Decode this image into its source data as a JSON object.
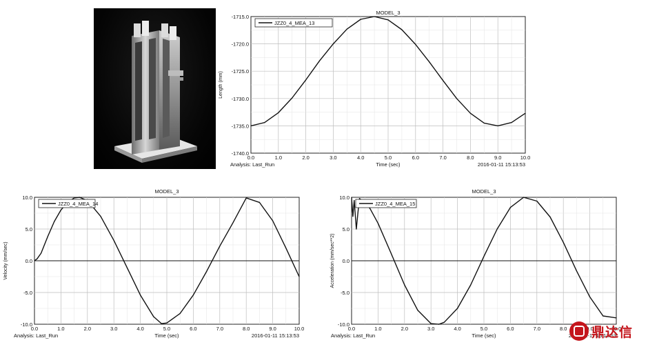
{
  "chart_data": [
    {
      "type": "line",
      "title": "MODEL_3",
      "xlabel": "Time (sec)",
      "ylabel": "Length (mm)",
      "footer_left": "Analysis:  Last_Run",
      "footer_right": "2016-01-11 15:13:53",
      "legend_position": "top-left",
      "grid": true,
      "xlim": [
        0.0,
        10.0
      ],
      "ylim": [
        -1740.0,
        -1715.0
      ],
      "xticks": [
        "0.0",
        "1.0",
        "2.0",
        "3.0",
        "4.0",
        "5.0",
        "6.0",
        "7.0",
        "8.0",
        "9.0",
        "10.0"
      ],
      "yticks": [
        "-1715.0",
        "-1720.0",
        "-1725.0",
        "-1730.0",
        "-1735.0",
        "-1740.0"
      ],
      "series": [
        {
          "name": "JZZ0_4_MEA_13",
          "x": [
            0.0,
            0.5,
            1.0,
            1.5,
            2.0,
            2.5,
            3.0,
            3.5,
            4.0,
            4.5,
            5.0,
            5.5,
            6.0,
            6.5,
            7.0,
            7.5,
            8.0,
            8.5,
            9.0,
            9.5,
            10.0
          ],
          "y": [
            -1735.0,
            -1734.4,
            -1732.6,
            -1729.9,
            -1726.6,
            -1723.1,
            -1720.0,
            -1717.3,
            -1715.5,
            -1715.0,
            -1715.6,
            -1717.4,
            -1720.1,
            -1723.3,
            -1726.7,
            -1730.0,
            -1732.7,
            -1734.5,
            -1735.0,
            -1734.4,
            -1732.7
          ]
        }
      ]
    },
    {
      "type": "line",
      "title": "MODEL_3",
      "xlabel": "Time (sec)",
      "ylabel": "Velocity (mm/sec)",
      "footer_left": "Analysis:  Last_Run",
      "footer_right": "2016-01-11 15:13:53",
      "legend_position": "top-left",
      "grid": true,
      "xlim": [
        0.0,
        10.0
      ],
      "ylim": [
        -10.0,
        10.0
      ],
      "xticks": [
        "0.0",
        "1.0",
        "2.0",
        "3.0",
        "4.0",
        "5.0",
        "6.0",
        "7.0",
        "8.0",
        "9.0",
        "10.0"
      ],
      "yticks": [
        "10.0",
        "5.0",
        "0.0",
        "-5.0",
        "-10.0"
      ],
      "series": [
        {
          "name": "JZZ0_4_MEA_14",
          "x": [
            0.0,
            0.1,
            0.25,
            0.5,
            0.75,
            1.0,
            1.25,
            1.5,
            1.7,
            2.0,
            2.5,
            3.0,
            3.5,
            4.0,
            4.5,
            4.8,
            5.0,
            5.5,
            6.0,
            6.5,
            7.0,
            7.5,
            8.0,
            8.5,
            9.0,
            9.5,
            10.0
          ],
          "y": [
            0.0,
            0.3,
            1.2,
            3.8,
            6.2,
            8.0,
            9.2,
            9.9,
            10.0,
            9.5,
            7.0,
            3.2,
            -1.1,
            -5.4,
            -8.8,
            -9.9,
            -9.8,
            -8.3,
            -5.4,
            -1.7,
            2.3,
            6.0,
            9.9,
            9.2,
            6.3,
            2.0,
            -2.5
          ]
        }
      ]
    },
    {
      "type": "line",
      "title": "MODEL_3",
      "xlabel": "Time (sec)",
      "ylabel": "Acceleration (mm/sec**2)",
      "footer_left": "Analysis:  Last_Run",
      "footer_right": "2016-01-11 15:13:53",
      "legend_position": "top-left",
      "grid": true,
      "xlim": [
        0.0,
        10.0
      ],
      "ylim": [
        -10.0,
        10.0
      ],
      "xticks": [
        "0.0",
        "1.0",
        "2.0",
        "3.0",
        "4.0",
        "5.0",
        "6.0",
        "7.0",
        "8.0",
        "9.0",
        "10.0"
      ],
      "yticks": [
        "10.0",
        "5.0",
        "0.0",
        "-5.0",
        "-10.0"
      ],
      "series": [
        {
          "name": "JZZ0_4_MEA_15",
          "x": [
            0.0,
            0.05,
            0.1,
            0.18,
            0.25,
            0.3,
            0.4,
            0.5,
            0.7,
            1.0,
            1.5,
            2.0,
            2.5,
            3.0,
            3.3,
            3.5,
            4.0,
            4.5,
            5.0,
            5.5,
            6.0,
            6.5,
            7.0,
            7.5,
            8.0,
            8.5,
            9.0,
            9.5,
            10.0
          ],
          "y": [
            10.0,
            7.0,
            9.5,
            5.0,
            8.0,
            9.8,
            9.5,
            9.3,
            8.2,
            5.9,
            1.1,
            -3.8,
            -7.8,
            -9.9,
            -10.0,
            -9.7,
            -7.5,
            -3.8,
            0.7,
            5.0,
            8.4,
            10.0,
            9.4,
            6.9,
            2.9,
            -1.6,
            -5.7,
            -8.7,
            -9.0
          ]
        }
      ]
    }
  ]
}
